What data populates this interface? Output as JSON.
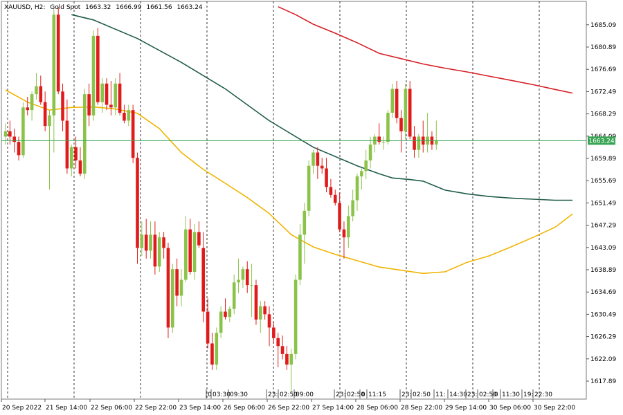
{
  "header": {
    "symbol": "XAUUSD, H2:",
    "description": "Gold Spot",
    "open": "1663.32",
    "high": "1666.99",
    "low": "1661.56",
    "close": "1663.24"
  },
  "chart_data": {
    "type": "candlestick",
    "symbol": "XAUUSD",
    "timeframe": "H2",
    "ylim": [
      1614.5,
      1689.5
    ],
    "y_ticks": [
      "1685.09",
      "1680.89",
      "1676.69",
      "1672.49",
      "1668.29",
      "1664.09",
      "1659.89",
      "1655.69",
      "1651.49",
      "1647.29",
      "1643.09",
      "1638.89",
      "1634.69",
      "1630.49",
      "1626.29",
      "1622.09",
      "1617.89"
    ],
    "x_ticks": [
      "20 Sep 2022",
      "21 Sep 14:00",
      "22 Sep 06:00",
      "22 Sep 22:00",
      "23 Sep 14:00",
      "26 Sep 06:00",
      "26 Sep 22:00",
      "27 Sep 14:00",
      "28 Sep 06:00",
      "28 Sep 22:00",
      "29 Sep 14:00",
      "30 Sep 06:00",
      "30 Sep 22:00"
    ],
    "event_labels": [
      "0",
      "03:30",
      "09:30",
      "23:",
      "02:50",
      "09:00",
      "23:",
      "02:50",
      "0",
      "11:15",
      "23:",
      "02:50",
      "11:",
      "14:30",
      "23:",
      "02:50",
      "0",
      "11:30",
      "19:",
      "22:30"
    ],
    "current_price": "1663.24",
    "grid": true,
    "colors": {
      "bull": "#8bc34a",
      "bear": "#e01b1b",
      "ma_fast": "#f0b400",
      "ma_mid": "#1f5a4a",
      "ma_slow": "#d61f26",
      "price_line": "#3aa655",
      "price_tag": "#3aa655"
    },
    "candles": [
      [
        1664.0,
        1666.5,
        1662.5,
        1665.0
      ],
      [
        1665.0,
        1667.0,
        1662.5,
        1664.0
      ],
      [
        1664.0,
        1665.5,
        1661.0,
        1663.0
      ],
      [
        1663.0,
        1664.0,
        1659.5,
        1660.5
      ],
      [
        1660.5,
        1670.5,
        1660.0,
        1669.5
      ],
      [
        1669.5,
        1671.5,
        1668.0,
        1669.0
      ],
      [
        1669.0,
        1672.5,
        1667.0,
        1672.0
      ],
      [
        1672.0,
        1676.0,
        1671.0,
        1673.5
      ],
      [
        1673.5,
        1675.5,
        1670.0,
        1670.5
      ],
      [
        1670.5,
        1672.5,
        1665.0,
        1666.0
      ],
      [
        1666.0,
        1669.0,
        1654.0,
        1668.0
      ],
      [
        1668.0,
        1688.0,
        1661.0,
        1687.0
      ],
      [
        1687.0,
        1688.5,
        1672.0,
        1672.5
      ],
      [
        1672.5,
        1674.0,
        1665.0,
        1667.0
      ],
      [
        1667.0,
        1671.0,
        1657.0,
        1658.0
      ],
      [
        1658.0,
        1662.5,
        1656.5,
        1662.0
      ],
      [
        1662.0,
        1664.0,
        1658.0,
        1659.5
      ],
      [
        1659.5,
        1662.0,
        1656.5,
        1657.0
      ],
      [
        1657.0,
        1673.0,
        1656.0,
        1672.0
      ],
      [
        1672.0,
        1674.0,
        1666.0,
        1668.0
      ],
      [
        1668.0,
        1684.0,
        1667.0,
        1683.0
      ],
      [
        1683.0,
        1684.5,
        1670.0,
        1670.5
      ],
      [
        1670.5,
        1675.0,
        1668.5,
        1674.0
      ],
      [
        1674.0,
        1675.0,
        1669.0,
        1670.0
      ],
      [
        1670.0,
        1674.5,
        1668.0,
        1669.5
      ],
      [
        1669.5,
        1675.0,
        1668.0,
        1674.0
      ],
      [
        1674.0,
        1676.0,
        1668.0,
        1668.5
      ],
      [
        1668.5,
        1670.0,
        1666.5,
        1667.0
      ],
      [
        1667.0,
        1670.0,
        1666.0,
        1669.0
      ],
      [
        1669.0,
        1670.0,
        1659.0,
        1660.0
      ],
      [
        1660.0,
        1661.0,
        1640.0,
        1643.0
      ],
      [
        1643.0,
        1648.0,
        1641.5,
        1645.5
      ],
      [
        1645.5,
        1648.5,
        1641.0,
        1642.5
      ],
      [
        1642.5,
        1648.0,
        1641.0,
        1645.5
      ],
      [
        1645.5,
        1648.0,
        1638.0,
        1639.5
      ],
      [
        1639.5,
        1646.0,
        1638.5,
        1645.0
      ],
      [
        1645.0,
        1646.0,
        1641.0,
        1643.0
      ],
      [
        1643.0,
        1644.0,
        1626.0,
        1628.0
      ],
      [
        1628.0,
        1640.0,
        1627.0,
        1639.0
      ],
      [
        1639.0,
        1641.0,
        1632.0,
        1634.0
      ],
      [
        1634.0,
        1639.0,
        1632.0,
        1637.0
      ],
      [
        1637.0,
        1649.0,
        1636.5,
        1646.5
      ],
      [
        1646.5,
        1648.5,
        1638.0,
        1638.5
      ],
      [
        1638.5,
        1647.5,
        1637.0,
        1646.0
      ],
      [
        1646.0,
        1648.0,
        1643.0,
        1643.5
      ],
      [
        1643.0,
        1646.0,
        1629.0,
        1631.0
      ],
      [
        1631.0,
        1633.5,
        1624.0,
        1625.0
      ],
      [
        1625.0,
        1627.0,
        1620.0,
        1621.0
      ],
      [
        1621.0,
        1628.0,
        1620.0,
        1627.0
      ],
      [
        1627.0,
        1632.0,
        1626.0,
        1631.0
      ],
      [
        1631.0,
        1633.5,
        1629.5,
        1630.0
      ],
      [
        1630.0,
        1632.0,
        1629.0,
        1631.5
      ],
      [
        1631.5,
        1638.0,
        1630.5,
        1636.5
      ],
      [
        1636.5,
        1641.0,
        1634.5,
        1637.0
      ],
      [
        1637.0,
        1639.5,
        1635.5,
        1639.0
      ],
      [
        1639.0,
        1640.5,
        1634.5,
        1636.0
      ],
      [
        1636.0,
        1640.0,
        1630.0,
        1636.0
      ],
      [
        1636.0,
        1637.0,
        1628.5,
        1629.5
      ],
      [
        1629.5,
        1633.0,
        1627.0,
        1632.0
      ],
      [
        1632.0,
        1633.0,
        1629.5,
        1630.5
      ],
      [
        1630.5,
        1632.0,
        1624.5,
        1628.0
      ],
      [
        1628.0,
        1629.0,
        1625.0,
        1626.0
      ],
      [
        1626.0,
        1627.0,
        1620.5,
        1624.5
      ],
      [
        1624.5,
        1626.5,
        1622.0,
        1623.0
      ],
      [
        1623.0,
        1624.5,
        1620.0,
        1621.0
      ],
      [
        1621.0,
        1624.0,
        1616.0,
        1623.0
      ],
      [
        1623.0,
        1638.0,
        1622.0,
        1637.0
      ],
      [
        1637.0,
        1647.5,
        1636.0,
        1645.5
      ],
      [
        1645.5,
        1651.5,
        1640.0,
        1650.0
      ],
      [
        1650.0,
        1659.5,
        1649.0,
        1658.5
      ],
      [
        1658.5,
        1661.5,
        1657.0,
        1661.0
      ],
      [
        1661.0,
        1662.0,
        1656.0,
        1658.5
      ],
      [
        1658.5,
        1660.0,
        1657.0,
        1658.0
      ],
      [
        1658.0,
        1660.0,
        1653.5,
        1654.5
      ],
      [
        1654.5,
        1656.0,
        1652.5,
        1653.0
      ],
      [
        1653.0,
        1654.0,
        1651.0,
        1651.5
      ],
      [
        1651.5,
        1653.5,
        1646.0,
        1646.5
      ],
      [
        1646.5,
        1648.0,
        1641.0,
        1645.0
      ],
      [
        1645.0,
        1651.0,
        1643.0,
        1649.0
      ],
      [
        1649.0,
        1654.0,
        1648.0,
        1652.0
      ],
      [
        1652.0,
        1657.0,
        1650.0,
        1656.5
      ],
      [
        1656.5,
        1658.0,
        1654.0,
        1657.5
      ],
      [
        1657.5,
        1661.5,
        1656.0,
        1659.5
      ],
      [
        1659.5,
        1664.0,
        1658.0,
        1662.5
      ],
      [
        1662.5,
        1664.5,
        1661.0,
        1664.0
      ],
      [
        1664.0,
        1666.5,
        1662.5,
        1663.0
      ],
      [
        1663.0,
        1664.0,
        1661.5,
        1663.0
      ],
      [
        1663.0,
        1669.0,
        1662.5,
        1668.5
      ],
      [
        1668.5,
        1674.0,
        1667.5,
        1673.0
      ],
      [
        1673.0,
        1674.5,
        1666.5,
        1667.5
      ],
      [
        1667.5,
        1669.0,
        1661.0,
        1665.0
      ],
      [
        1665.0,
        1674.0,
        1663.5,
        1673.0
      ],
      [
        1673.0,
        1674.5,
        1663.5,
        1664.0
      ],
      [
        1664.0,
        1666.0,
        1660.0,
        1661.5
      ],
      [
        1661.5,
        1664.5,
        1660.0,
        1664.0
      ],
      [
        1664.0,
        1667.0,
        1661.0,
        1662.5
      ],
      [
        1662.5,
        1668.5,
        1661.0,
        1664.0
      ],
      [
        1664.0,
        1665.0,
        1661.5,
        1662.5
      ],
      [
        1662.5,
        1667.0,
        1661.5,
        1663.24
      ]
    ],
    "moving_averages": [
      {
        "color": "#f0b400",
        "values": [
          [
            0,
            1672.8
          ],
          [
            5,
            1670.5
          ],
          [
            10,
            1669.0
          ],
          [
            15,
            1669.5
          ],
          [
            20,
            1669.6
          ],
          [
            25,
            1669.2
          ],
          [
            30,
            1668.4
          ],
          [
            35,
            1665.5
          ],
          [
            40,
            1661.0
          ],
          [
            45,
            1657.8
          ],
          [
            50,
            1655.2
          ],
          [
            55,
            1652.5
          ],
          [
            60,
            1649.5
          ],
          [
            65,
            1645.5
          ],
          [
            70,
            1643.2
          ],
          [
            75,
            1641.8
          ],
          [
            80,
            1640.6
          ],
          [
            85,
            1639.4
          ],
          [
            90,
            1638.8
          ],
          [
            95,
            1638.2
          ],
          [
            100,
            1638.5
          ],
          [
            105,
            1640.3
          ],
          [
            110,
            1641.5
          ],
          [
            115,
            1643.2
          ],
          [
            120,
            1645.0
          ],
          [
            125,
            1646.9
          ],
          [
            129,
            1649.4
          ]
        ]
      },
      {
        "color": "#1f5a4a",
        "values": [
          [
            15,
            1687.0
          ],
          [
            20,
            1686.0
          ],
          [
            30,
            1682.5
          ],
          [
            40,
            1678.0
          ],
          [
            50,
            1673.0
          ],
          [
            60,
            1667.0
          ],
          [
            70,
            1662.0
          ],
          [
            80,
            1658.5
          ],
          [
            85,
            1657.0
          ],
          [
            88,
            1656.2
          ],
          [
            92,
            1655.9
          ],
          [
            95,
            1655.6
          ],
          [
            100,
            1653.9
          ],
          [
            105,
            1653.2
          ],
          [
            110,
            1652.7
          ],
          [
            115,
            1652.4
          ],
          [
            120,
            1652.2
          ],
          [
            125,
            1652.0
          ],
          [
            129,
            1652.0
          ]
        ]
      },
      {
        "color": "#d61f26",
        "values": [
          [
            62,
            1688.5
          ],
          [
            66,
            1687.0
          ],
          [
            70,
            1685.2
          ],
          [
            75,
            1683.5
          ],
          [
            80,
            1681.7
          ],
          [
            85,
            1679.7
          ],
          [
            90,
            1678.7
          ],
          [
            95,
            1677.7
          ],
          [
            100,
            1676.9
          ],
          [
            105,
            1676.2
          ],
          [
            110,
            1675.4
          ],
          [
            115,
            1674.6
          ],
          [
            120,
            1673.8
          ],
          [
            125,
            1672.9
          ],
          [
            129,
            1672.2
          ]
        ]
      }
    ]
  }
}
